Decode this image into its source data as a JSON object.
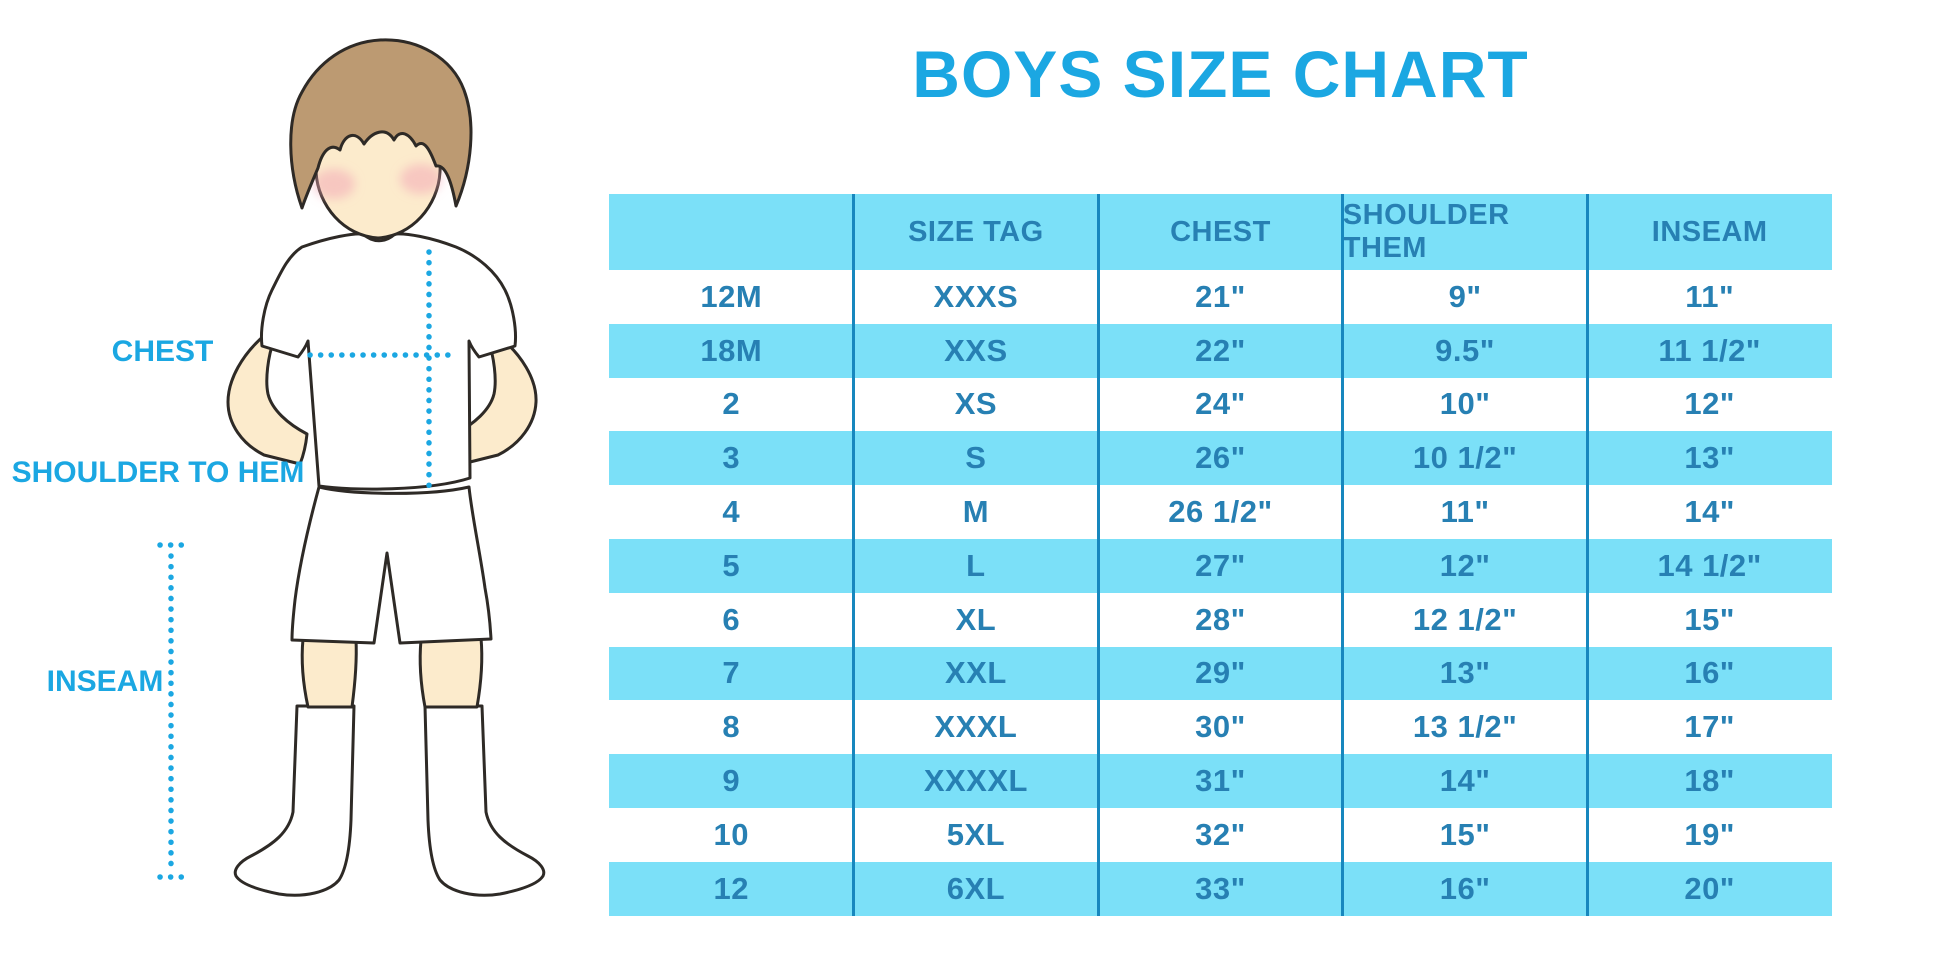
{
  "title": "BOYS SIZE CHART",
  "measure_labels": {
    "chest": "CHEST",
    "shoulder_to_hem": "SHOULDER TO HEM",
    "inseam": "INSEAM"
  },
  "colors": {
    "accent_blue": "#1BA7E2",
    "table_row_blue": "#7BE0F8",
    "table_text_blue": "#2780B3",
    "table_divider_blue": "#1787BE",
    "hair_brown": "#BC9A72",
    "skin_tone": "#FCEBCC",
    "cheek_pink": "#F2A9B6",
    "outline_dark": "#2E2A26",
    "garment_white": "#FFFFFF"
  },
  "chart_data": {
    "type": "table",
    "title": "BOYS SIZE CHART",
    "columns": [
      "",
      "SIZE TAG",
      "CHEST",
      "SHOULDER THEM",
      "INSEAM"
    ],
    "rows": [
      [
        "12M",
        "XXXS",
        "21\"",
        "9\"",
        "11\""
      ],
      [
        "18M",
        "XXS",
        "22\"",
        "9.5\"",
        "11 1/2\""
      ],
      [
        "2",
        "XS",
        "24\"",
        "10\"",
        "12\""
      ],
      [
        "3",
        "S",
        "26\"",
        "10 1/2\"",
        "13\""
      ],
      [
        "4",
        "M",
        "26 1/2\"",
        "11\"",
        "14\""
      ],
      [
        "5",
        "L",
        "27\"",
        "12\"",
        "14 1/2\""
      ],
      [
        "6",
        "XL",
        "28\"",
        "12 1/2\"",
        "15\""
      ],
      [
        "7",
        "XXL",
        "29\"",
        "13\"",
        "16\""
      ],
      [
        "8",
        "XXXL",
        "30\"",
        "13 1/2\"",
        "17\""
      ],
      [
        "9",
        "XXXXL",
        "31\"",
        "14\"",
        "18\""
      ],
      [
        "10",
        "5XL",
        "32\"",
        "15\"",
        "19\""
      ],
      [
        "12",
        "6XL",
        "33\"",
        "16\"",
        "20\""
      ]
    ]
  }
}
